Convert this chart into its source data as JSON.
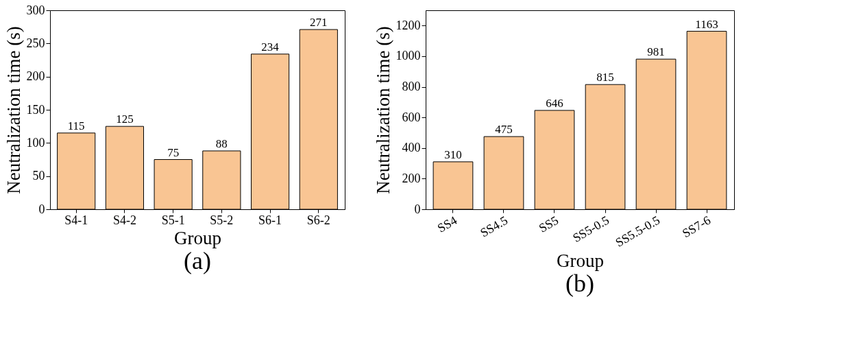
{
  "chart_data": [
    {
      "type": "bar",
      "categories": [
        "S4-1",
        "S4-2",
        "S5-1",
        "S5-2",
        "S6-1",
        "S6-2"
      ],
      "values": [
        115,
        125,
        75,
        88,
        234,
        271
      ],
      "color": "#f9c593",
      "xlabel": "Group",
      "ylabel": "Neutralization time (s)",
      "ylim": [
        0,
        300
      ],
      "yticks": [
        0,
        50,
        100,
        150,
        200,
        250,
        300
      ],
      "data_labels": true,
      "grid": false,
      "annotations": [
        "(a)"
      ]
    },
    {
      "type": "bar",
      "categories": [
        "SS4",
        "SS4.5",
        "SS5",
        "SS5-0.5",
        "SS5.5-0.5",
        "SS7-6"
      ],
      "values": [
        310,
        475,
        646,
        815,
        981,
        1163
      ],
      "color": "#f9c593",
      "xlabel": "Group",
      "ylabel": "Neutralization time (s)",
      "ylim": [
        0,
        1300
      ],
      "yticks": [
        0,
        200,
        400,
        600,
        800,
        1000,
        1200
      ],
      "data_labels": true,
      "grid": false,
      "annotations": [
        "(b)"
      ]
    }
  ]
}
